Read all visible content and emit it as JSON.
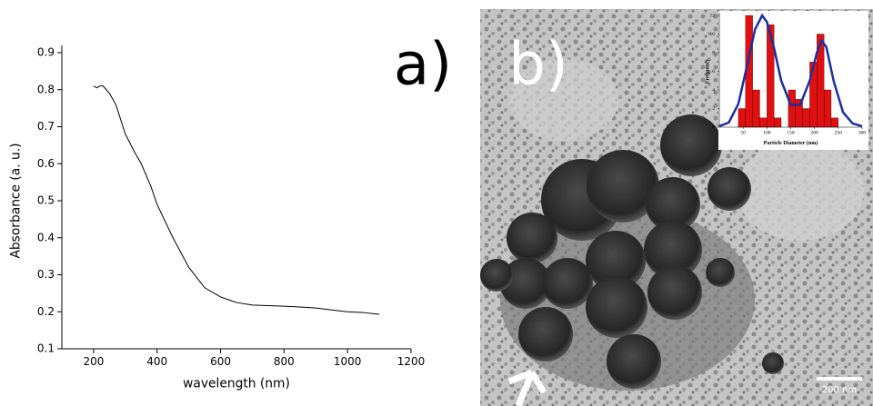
{
  "chart_data": [
    {
      "type": "line",
      "panel_label": "a)",
      "xlabel": "wavelength (nm)",
      "ylabel": "Absorbance (a. u.)",
      "x": [
        200,
        210,
        220,
        230,
        250,
        270,
        300,
        330,
        350,
        380,
        400,
        450,
        500,
        550,
        600,
        650,
        700,
        800,
        850,
        900,
        950,
        1000,
        1050,
        1100
      ],
      "series": [
        {
          "color": "#000000",
          "values": [
            0.81,
            0.805,
            0.81,
            0.81,
            0.79,
            0.76,
            0.68,
            0.63,
            0.6,
            0.54,
            0.49,
            0.4,
            0.32,
            0.265,
            0.24,
            0.225,
            0.218,
            0.215,
            0.213,
            0.21,
            0.205,
            0.2,
            0.198,
            0.193
          ]
        }
      ],
      "xlim": [
        100,
        1200
      ],
      "xticks": [
        200,
        400,
        600,
        800,
        1000,
        1200
      ],
      "ylim": [
        0.1,
        0.9
      ],
      "yticks": [
        0.1,
        0.2,
        0.3,
        0.4,
        0.5,
        0.6,
        0.7,
        0.8,
        0.9
      ]
    },
    {
      "type": "histogram",
      "panel_label": "b)",
      "xlabel": "Particle Diameter (nm)",
      "ylabel": "Frequency",
      "bins": [
        40,
        55,
        70,
        85,
        100,
        115,
        130,
        145,
        160,
        175,
        190,
        205,
        220,
        235,
        250,
        265
      ],
      "values": [
        2,
        12,
        4,
        1,
        11,
        1,
        0,
        4,
        3,
        2,
        7,
        10,
        4,
        1,
        0
      ],
      "color": "#e01010",
      "fit": {
        "color": "#1a2fa0",
        "x": [
          0,
          20,
          40,
          60,
          75,
          90,
          100,
          115,
          130,
          150,
          170,
          190,
          205,
          215,
          225,
          240,
          260,
          280,
          300
        ],
        "y": [
          0.1,
          0.5,
          2.5,
          7,
          10.5,
          12,
          11.3,
          8.5,
          5,
          2.4,
          2.4,
          5,
          8,
          9.3,
          8.6,
          5,
          1.6,
          0.4,
          0.1
        ]
      },
      "xlim": [
        0,
        300
      ],
      "xticks": [
        50,
        100,
        150,
        200,
        250,
        300
      ],
      "ylim": [
        0,
        12
      ],
      "yticks": [
        0,
        2,
        4,
        6,
        8,
        10,
        12
      ],
      "scale_bar": "200 nm"
    }
  ]
}
